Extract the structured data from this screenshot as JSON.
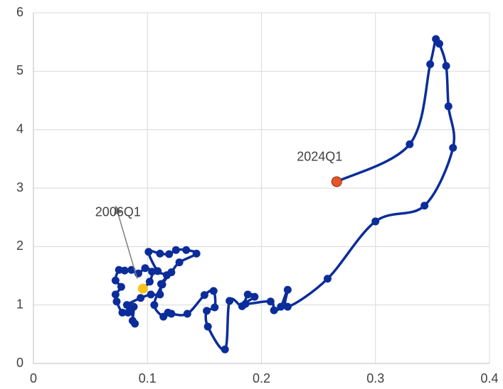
{
  "chart_data": {
    "type": "line",
    "series": [
      {
        "color": "#0b2d9a",
        "x": [
          0.096,
          0.102,
          0.104,
          0.098,
          0.092,
          0.086,
          0.08,
          0.075,
          0.072,
          0.077,
          0.072,
          0.073,
          0.078,
          0.083,
          0.088,
          0.087,
          0.089,
          0.085,
          0.082,
          0.094,
          0.103,
          0.111,
          0.112,
          0.117,
          0.109,
          0.101,
          0.111,
          0.119,
          0.125,
          0.134,
          0.143,
          0.128,
          0.121,
          0.113,
          0.106,
          0.114,
          0.118,
          0.121,
          0.135,
          0.15,
          0.158,
          0.159,
          0.152,
          0.153,
          0.168,
          0.172,
          0.183,
          0.188,
          0.194,
          0.186,
          0.208,
          0.211,
          0.217,
          0.223,
          0.223,
          0.258,
          0.3,
          0.343,
          0.368,
          0.364,
          0.362,
          0.356,
          0.353,
          0.348,
          0.33,
          0.266
        ],
        "y": [
          1.28,
          1.4,
          1.57,
          1.63,
          1.54,
          1.6,
          1.59,
          1.6,
          1.42,
          1.31,
          1.18,
          1.06,
          0.87,
          0.87,
          0.97,
          0.73,
          0.68,
          0.92,
          1.0,
          1.12,
          1.18,
          1.18,
          1.36,
          1.51,
          1.58,
          1.91,
          1.88,
          1.87,
          1.94,
          1.94,
          1.88,
          1.73,
          1.56,
          1.35,
          1.0,
          0.8,
          0.87,
          0.85,
          0.85,
          1.17,
          1.24,
          0.96,
          0.9,
          0.63,
          0.24,
          1.07,
          0.98,
          1.18,
          1.14,
          1.02,
          1.06,
          0.91,
          0.97,
          1.26,
          0.97,
          1.45,
          2.43,
          2.7,
          3.69,
          4.4,
          5.09,
          5.47,
          5.55,
          5.12,
          3.75,
          3.11
        ]
      }
    ],
    "start_color": "#f9c21b",
    "end_color": "#e8542a",
    "annotations": [
      {
        "text": "2006Q1"
      },
      {
        "text": "2024Q1"
      }
    ],
    "xlim": [
      0,
      0.4
    ],
    "xticks": [
      0,
      0.1,
      0.2,
      0.3,
      0.4
    ],
    "ylim": [
      0,
      6
    ],
    "yticks": [
      0,
      1,
      2,
      3,
      4,
      5,
      6
    ],
    "grid": true
  }
}
